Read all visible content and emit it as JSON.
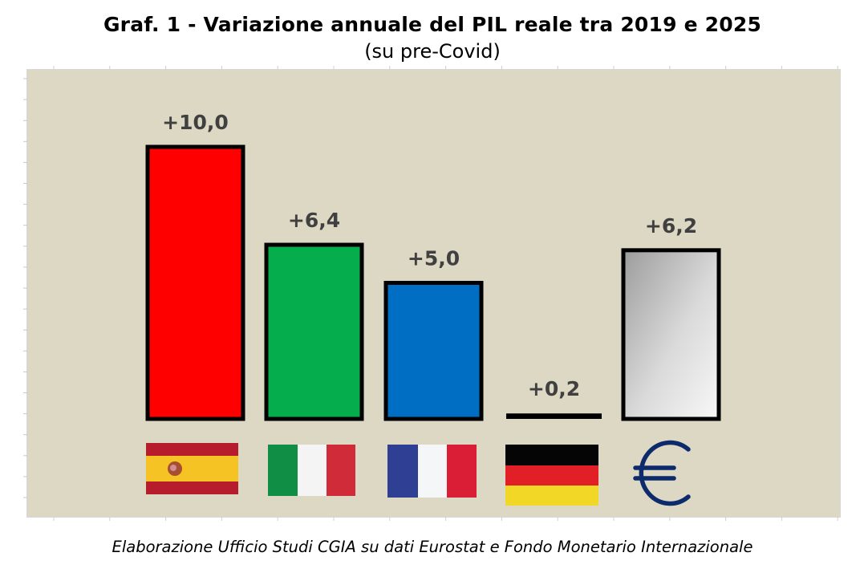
{
  "chart_data": {
    "type": "bar",
    "title": "Graf. 1 - Variazione annuale del PIL reale tra 2019 e 2025",
    "subtitle": "(su pre-Covid)",
    "xlabel": "",
    "ylabel": "",
    "categories": [
      "Spagna",
      "Italia",
      "Francia",
      "Germania",
      "Eurozona"
    ],
    "category_icons": [
      "spain-flag-icon",
      "italy-flag-icon",
      "france-flag-icon",
      "germany-flag-icon",
      "euro-icon"
    ],
    "values": [
      10.0,
      6.4,
      5.0,
      0.2,
      6.2
    ],
    "data_labels": [
      "+10,0",
      "+6,4",
      "+5,0",
      "+0,2",
      "+6,2"
    ],
    "colors": [
      "#ff0000",
      "#06ad4c",
      "#006fc3",
      "#000000",
      "gradient-gray"
    ],
    "ylim": [
      0,
      10
    ],
    "grid": false,
    "legend": "none",
    "source": "Elaborazione Ufficio Studi CGIA su dati Eurostat e Fondo Monetario Internazionale"
  }
}
